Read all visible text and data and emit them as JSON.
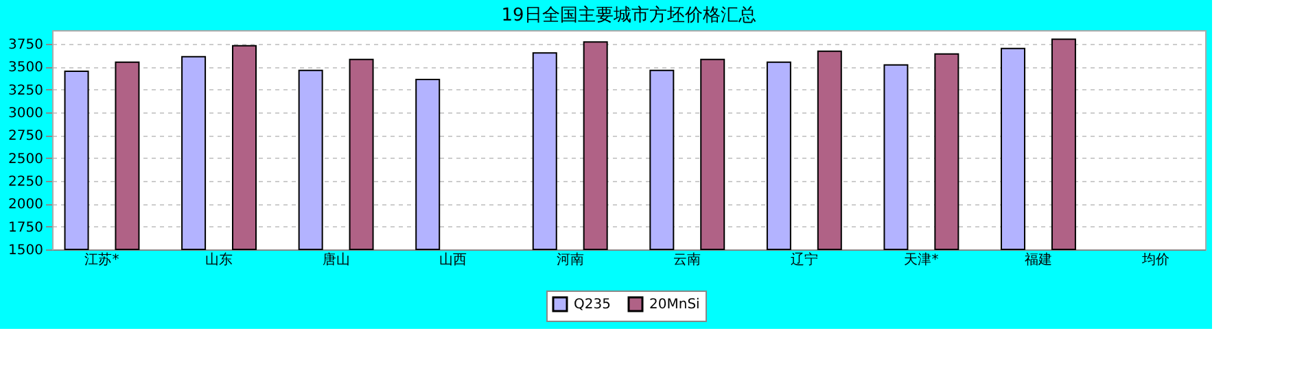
{
  "chart_data": {
    "type": "bar",
    "title": "19日全国主要城市方坯价格汇总",
    "categories": [
      "江苏*",
      "山东",
      "唐山",
      "山西",
      "河南",
      "云南",
      "辽宁",
      "天津*",
      "福建",
      "均价"
    ],
    "series": [
      {
        "name": "Q235",
        "color": "#b3b3ff",
        "values": [
          3450,
          3610,
          3460,
          3360,
          3650,
          3460,
          3550,
          3520,
          3700,
          null
        ]
      },
      {
        "name": "20MnSi",
        "color": "#b06286",
        "values": [
          3550,
          3730,
          3580,
          null,
          3770,
          3580,
          3670,
          3640,
          3800,
          null
        ]
      }
    ],
    "ylim": [
      1500,
      3900
    ],
    "yticks": [
      1500,
      1750,
      2000,
      2250,
      2500,
      2750,
      3000,
      3250,
      3500,
      3750
    ],
    "grid": "y",
    "legend": "bottom"
  }
}
